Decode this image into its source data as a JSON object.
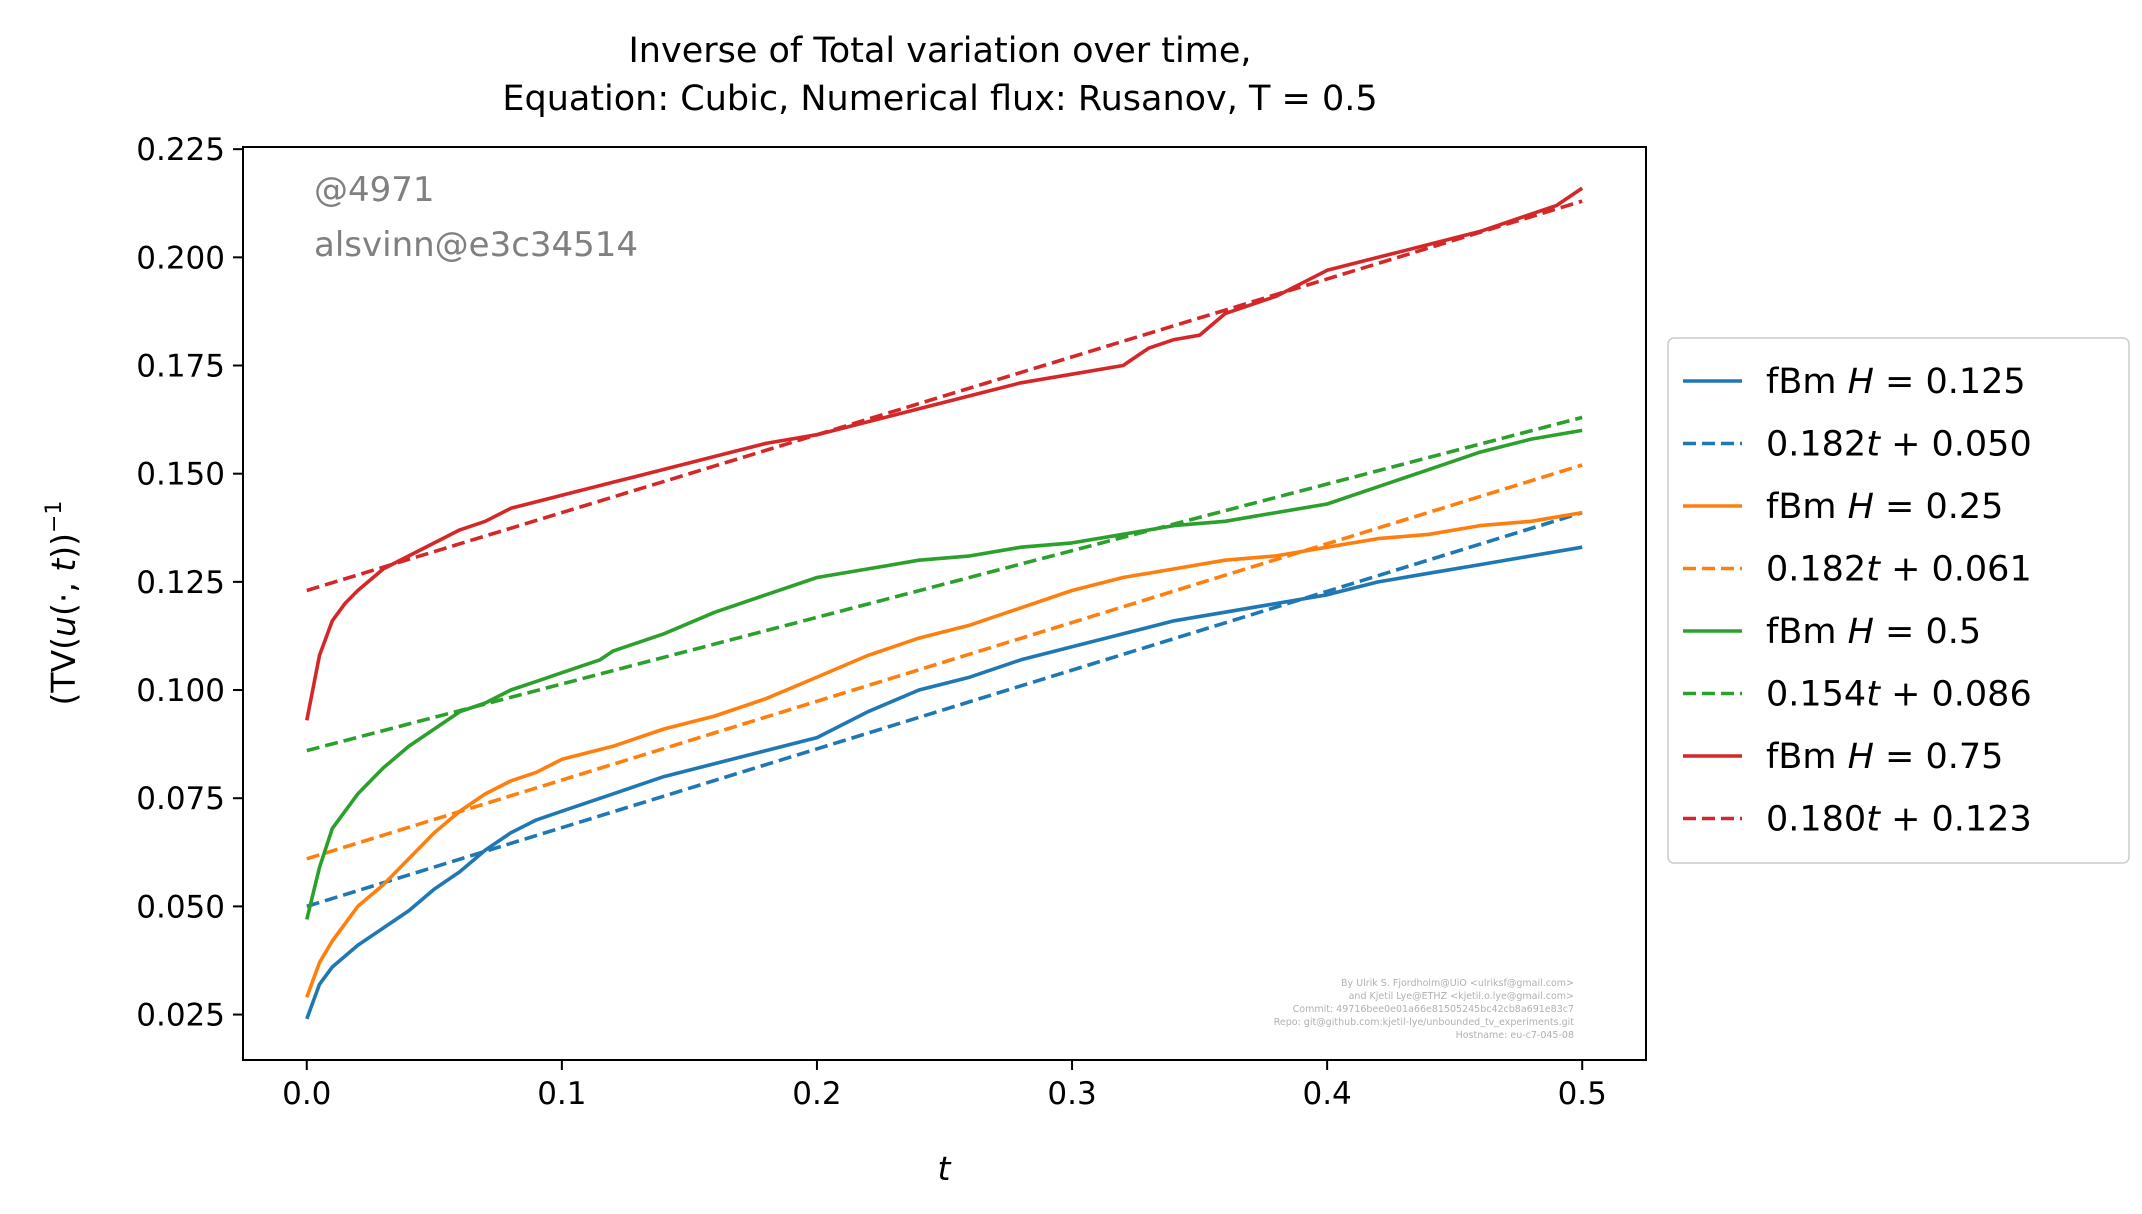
{
  "chart_data": {
    "type": "line",
    "title": [
      "Inverse of Total variation over time,",
      "Equation: Cubic, Numerical flux: Rusanov, T = 0.5"
    ],
    "xlabel": "t",
    "ylabel": "(TV(u(·,t)))⁻¹",
    "xlim": [
      -0.025,
      0.525
    ],
    "ylim": [
      0.0145,
      0.2255
    ],
    "xticks": [
      "0.0",
      "0.1",
      "0.2",
      "0.3",
      "0.4",
      "0.5"
    ],
    "xtick_values": [
      0.0,
      0.1,
      0.2,
      0.3,
      0.4,
      0.5
    ],
    "yticks": [
      "0.025",
      "0.050",
      "0.075",
      "0.100",
      "0.125",
      "0.150",
      "0.175",
      "0.200",
      "0.225"
    ],
    "ytick_values": [
      0.025,
      0.05,
      0.075,
      0.1,
      0.125,
      0.15,
      0.175,
      0.2,
      0.225
    ],
    "grid": false,
    "legend_placement": "right, outside",
    "series": [
      {
        "name": "fBm H = 0.125",
        "legend_main": "fBm ",
        "legend_var": "H",
        "legend_rest": " = 0.125",
        "color": "#1f77b4",
        "style": "solid",
        "x": [
          0.0,
          0.005,
          0.01,
          0.02,
          0.03,
          0.04,
          0.05,
          0.06,
          0.07,
          0.08,
          0.09,
          0.1,
          0.12,
          0.14,
          0.16,
          0.18,
          0.2,
          0.22,
          0.24,
          0.26,
          0.28,
          0.3,
          0.32,
          0.34,
          0.36,
          0.38,
          0.4,
          0.42,
          0.44,
          0.46,
          0.48,
          0.5
        ],
        "y": [
          0.024,
          0.032,
          0.036,
          0.041,
          0.045,
          0.049,
          0.054,
          0.058,
          0.063,
          0.067,
          0.07,
          0.072,
          0.076,
          0.08,
          0.083,
          0.086,
          0.089,
          0.095,
          0.1,
          0.103,
          0.107,
          0.11,
          0.113,
          0.116,
          0.118,
          0.12,
          0.122,
          0.125,
          0.127,
          0.129,
          0.131,
          0.133
        ]
      },
      {
        "name": "0.182t + 0.050",
        "legend_main": "0.182",
        "legend_var": "t",
        "legend_rest": " + 0.050",
        "color": "#1f77b4",
        "style": "dashed",
        "x": [
          0.0,
          0.5
        ],
        "y": [
          0.05,
          0.141
        ]
      },
      {
        "name": "fBm H = 0.25",
        "legend_main": "fBm ",
        "legend_var": "H",
        "legend_rest": " = 0.25",
        "color": "#ff7f0e",
        "style": "solid",
        "x": [
          0.0,
          0.005,
          0.01,
          0.02,
          0.03,
          0.04,
          0.05,
          0.06,
          0.07,
          0.08,
          0.09,
          0.1,
          0.12,
          0.14,
          0.16,
          0.18,
          0.2,
          0.22,
          0.24,
          0.26,
          0.28,
          0.3,
          0.32,
          0.34,
          0.36,
          0.38,
          0.4,
          0.42,
          0.44,
          0.46,
          0.48,
          0.5
        ],
        "y": [
          0.029,
          0.037,
          0.042,
          0.05,
          0.055,
          0.061,
          0.067,
          0.072,
          0.076,
          0.079,
          0.081,
          0.084,
          0.087,
          0.091,
          0.094,
          0.098,
          0.103,
          0.108,
          0.112,
          0.115,
          0.119,
          0.123,
          0.126,
          0.128,
          0.13,
          0.131,
          0.133,
          0.135,
          0.136,
          0.138,
          0.139,
          0.141
        ]
      },
      {
        "name": "0.182t + 0.061",
        "legend_main": "0.182",
        "legend_var": "t",
        "legend_rest": " + 0.061",
        "color": "#ff7f0e",
        "style": "dashed",
        "x": [
          0.0,
          0.5
        ],
        "y": [
          0.061,
          0.152
        ]
      },
      {
        "name": "fBm H = 0.5",
        "legend_main": "fBm ",
        "legend_var": "H",
        "legend_rest": " = 0.5",
        "color": "#2ca02c",
        "style": "solid",
        "x": [
          0.0,
          0.005,
          0.01,
          0.02,
          0.03,
          0.04,
          0.05,
          0.06,
          0.07,
          0.08,
          0.09,
          0.1,
          0.11,
          0.115,
          0.12,
          0.14,
          0.16,
          0.18,
          0.2,
          0.22,
          0.24,
          0.26,
          0.28,
          0.3,
          0.32,
          0.34,
          0.36,
          0.38,
          0.4,
          0.42,
          0.44,
          0.46,
          0.48,
          0.5
        ],
        "y": [
          0.047,
          0.059,
          0.068,
          0.076,
          0.082,
          0.087,
          0.091,
          0.095,
          0.097,
          0.1,
          0.102,
          0.104,
          0.106,
          0.107,
          0.109,
          0.113,
          0.118,
          0.122,
          0.126,
          0.128,
          0.13,
          0.131,
          0.133,
          0.134,
          0.136,
          0.138,
          0.139,
          0.141,
          0.143,
          0.147,
          0.151,
          0.155,
          0.158,
          0.16
        ]
      },
      {
        "name": "0.154t + 0.086",
        "legend_main": "0.154",
        "legend_var": "t",
        "legend_rest": " + 0.086",
        "color": "#2ca02c",
        "style": "dashed",
        "x": [
          0.0,
          0.5
        ],
        "y": [
          0.086,
          0.163
        ]
      },
      {
        "name": "fBm H = 0.75",
        "legend_main": "fBm ",
        "legend_var": "H",
        "legend_rest": " = 0.75",
        "color": "#d62728",
        "style": "solid",
        "x": [
          0.0,
          0.005,
          0.01,
          0.015,
          0.02,
          0.03,
          0.04,
          0.05,
          0.06,
          0.07,
          0.08,
          0.1,
          0.12,
          0.14,
          0.16,
          0.18,
          0.2,
          0.22,
          0.24,
          0.26,
          0.28,
          0.3,
          0.32,
          0.33,
          0.34,
          0.35,
          0.36,
          0.38,
          0.4,
          0.42,
          0.44,
          0.46,
          0.48,
          0.49,
          0.5
        ],
        "y": [
          0.093,
          0.108,
          0.116,
          0.12,
          0.123,
          0.128,
          0.131,
          0.134,
          0.137,
          0.139,
          0.142,
          0.145,
          0.148,
          0.151,
          0.154,
          0.157,
          0.159,
          0.162,
          0.165,
          0.168,
          0.171,
          0.173,
          0.175,
          0.179,
          0.181,
          0.182,
          0.187,
          0.191,
          0.197,
          0.2,
          0.203,
          0.206,
          0.21,
          0.212,
          0.216
        ]
      },
      {
        "name": "0.180t + 0.123",
        "legend_main": "0.180",
        "legend_var": "t",
        "legend_rest": " + 0.123",
        "color": "#d62728",
        "style": "dashed",
        "x": [
          0.0,
          0.5
        ],
        "y": [
          0.123,
          0.213
        ]
      }
    ],
    "annotations": {
      "watermark": [
        "@4971",
        "alsvinn@e3c34514"
      ],
      "credits": [
        "By Ulrik S. Fjordholm@UiO <ulriksf@gmail.com>",
        "and Kjetil Lye@ETHZ <kjetil.o.lye@gmail.com>",
        "Commit: 49716bee0e01a66e81505245bc42cb8a691e83c7",
        "Repo: git@github.com:kjetil-lye/unbounded_tv_experiments.git",
        "Hostname: eu-c7-045-08"
      ]
    }
  }
}
